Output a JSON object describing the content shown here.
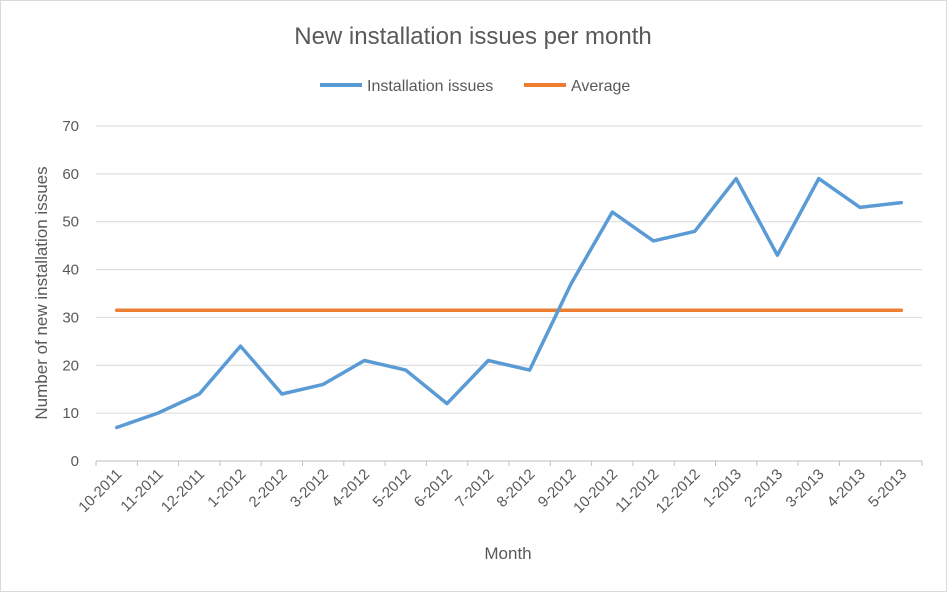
{
  "chart_data": {
    "type": "line",
    "title": "New installation issues per month",
    "xlabel": "Month",
    "ylabel": "Number of new installation issues",
    "ylim": [
      0,
      70
    ],
    "yticks": [
      0,
      10,
      20,
      30,
      40,
      50,
      60,
      70
    ],
    "grid": true,
    "legend_position": "top",
    "categories": [
      "10-2011",
      "11-2011",
      "12-2011",
      "1-2012",
      "2-2012",
      "3-2012",
      "4-2012",
      "5-2012",
      "6-2012",
      "7-2012",
      "8-2012",
      "9-2012",
      "10-2012",
      "11-2012",
      "12-2012",
      "1-2013",
      "2-2013",
      "3-2013",
      "4-2013",
      "5-2013"
    ],
    "series": [
      {
        "name": "Installation issues",
        "color": "#5b9bd5",
        "values": [
          7,
          10,
          14,
          24,
          14,
          16,
          21,
          19,
          12,
          21,
          19,
          37,
          52,
          46,
          48,
          59,
          43,
          59,
          53,
          54
        ]
      },
      {
        "name": "Average",
        "color": "#ed7d31",
        "values": [
          31.5,
          31.5,
          31.5,
          31.5,
          31.5,
          31.5,
          31.5,
          31.5,
          31.5,
          31.5,
          31.5,
          31.5,
          31.5,
          31.5,
          31.5,
          31.5,
          31.5,
          31.5,
          31.5,
          31.5
        ]
      }
    ]
  }
}
